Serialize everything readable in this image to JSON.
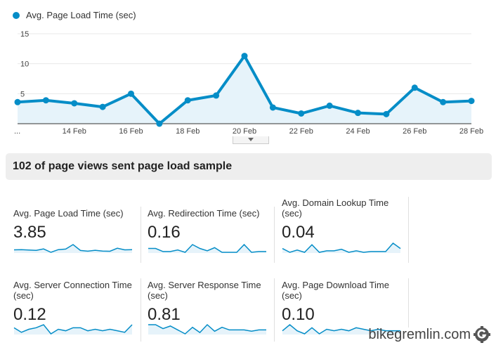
{
  "legend_label": "Avg. Page Load Time (sec)",
  "colors": {
    "line": "#058dc7",
    "fill": "#e6f3fa"
  },
  "chart_data": {
    "type": "line",
    "series": [
      {
        "name": "Avg. Page Load Time (sec)",
        "values": [
          3.6,
          3.9,
          3.4,
          2.8,
          5.0,
          0.0,
          3.9,
          4.7,
          11.3,
          2.7,
          1.7,
          3.0,
          1.8,
          1.6,
          6.0,
          3.6,
          3.8
        ]
      }
    ],
    "x_tick_labels": [
      "...",
      "14 Feb",
      "16 Feb",
      "18 Feb",
      "20 Feb",
      "22 Feb",
      "24 Feb",
      "26 Feb",
      "28 Feb"
    ],
    "y_tick_labels": [
      "15",
      "10",
      "5"
    ],
    "y_ticks": [
      15,
      10,
      5
    ],
    "ylim": [
      0,
      15
    ],
    "grid": true
  },
  "banner": "102 of page views sent page load sample",
  "metrics": [
    {
      "title": "Avg. Page Load Time (sec)",
      "value": "3.85",
      "spark": [
        3.6,
        3.9,
        3.4,
        2.8,
        5.0,
        0.0,
        3.9,
        4.7,
        11.3,
        2.7,
        1.7,
        3.0,
        1.8,
        1.6,
        6.0,
        3.6,
        3.8
      ]
    },
    {
      "title": "Avg. Redirection Time (sec)",
      "value": "0.16",
      "spark": [
        0.5,
        0.5,
        0.1,
        0.1,
        0.3,
        0.0,
        1.0,
        0.5,
        0.2,
        0.6,
        0.0,
        0.0,
        0.0,
        1.0,
        0.0,
        0.1,
        0.1
      ]
    },
    {
      "title": "Avg. Domain Lookup Time (sec)",
      "value": "0.04",
      "spark": [
        0.05,
        0.0,
        0.03,
        0.0,
        0.1,
        0.0,
        0.02,
        0.02,
        0.04,
        0.0,
        0.02,
        0.0,
        0.01,
        0.01,
        0.01,
        0.12,
        0.05
      ]
    },
    {
      "title": "Avg. Server Connection Time (sec)",
      "value": "0.12",
      "spark": [
        0.2,
        0.05,
        0.15,
        0.2,
        0.3,
        0.0,
        0.15,
        0.1,
        0.2,
        0.2,
        0.1,
        0.15,
        0.1,
        0.15,
        0.1,
        0.05,
        0.3
      ]
    },
    {
      "title": "Avg. Server Response Time (sec)",
      "value": "0.81",
      "spark": [
        1.0,
        1.0,
        0.7,
        0.9,
        0.6,
        0.3,
        0.8,
        0.4,
        1.0,
        0.5,
        0.8,
        0.6,
        0.6,
        0.6,
        0.5,
        0.6,
        0.6
      ]
    },
    {
      "title": "Avg. Page Download Time (sec)",
      "value": "0.10",
      "spark": [
        0.1,
        0.3,
        0.1,
        0.0,
        0.2,
        0.0,
        0.15,
        0.1,
        0.15,
        0.1,
        0.2,
        0.15,
        0.1,
        0.15,
        0.1,
        0.1,
        0.1
      ]
    }
  ],
  "watermark": "bikegremlin.com",
  "watermark_icon": "gear-g-logo-icon"
}
